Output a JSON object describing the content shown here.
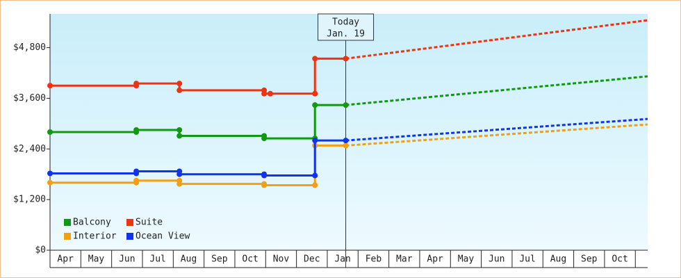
{
  "chart_data": {
    "type": "line",
    "xlim": [
      0,
      19.4
    ],
    "ylim": [
      0,
      5600
    ],
    "yticks": [
      {
        "value": 0,
        "label": "$0"
      },
      {
        "value": 1200,
        "label": "$1,200"
      },
      {
        "value": 2400,
        "label": "$2,400"
      },
      {
        "value": 3600,
        "label": "$3,600"
      },
      {
        "value": 4800,
        "label": "$4,800"
      }
    ],
    "xticks": [
      {
        "value": 0.5,
        "label": "Apr"
      },
      {
        "value": 1.5,
        "label": "May"
      },
      {
        "value": 2.5,
        "label": "Jun"
      },
      {
        "value": 3.5,
        "label": "Jul"
      },
      {
        "value": 4.5,
        "label": "Aug"
      },
      {
        "value": 5.5,
        "label": "Sep"
      },
      {
        "value": 6.5,
        "label": "Oct"
      },
      {
        "value": 7.5,
        "label": "Nov"
      },
      {
        "value": 8.5,
        "label": "Dec"
      },
      {
        "value": 9.5,
        "label": "Jan"
      },
      {
        "value": 10.5,
        "label": "Feb"
      },
      {
        "value": 11.5,
        "label": "Mar"
      },
      {
        "value": 12.5,
        "label": "Apr"
      },
      {
        "value": 13.5,
        "label": "May"
      },
      {
        "value": 14.5,
        "label": "Jun"
      },
      {
        "value": 15.5,
        "label": "Jul"
      },
      {
        "value": 16.5,
        "label": "Aug"
      },
      {
        "value": 17.5,
        "label": "Sep"
      },
      {
        "value": 18.5,
        "label": "Oct"
      }
    ],
    "legend": "lower left",
    "today_marker": {
      "x": 9.6,
      "title": "Today",
      "date": "Jan. 19"
    },
    "series": [
      {
        "name": "Balcony",
        "color": "#119911",
        "x": [
          0,
          2.8,
          2.8,
          4.2,
          4.2,
          6.95,
          6.95,
          8.6,
          8.6,
          9.6
        ],
        "values": [
          2800,
          2800,
          2850,
          2850,
          2710,
          2710,
          2650,
          2650,
          3440,
          3440
        ],
        "forecast": {
          "x": [
            9.6,
            19.4
          ],
          "values": [
            3440,
            4120
          ]
        }
      },
      {
        "name": "Suite",
        "color": "#ee3311",
        "x": [
          0,
          2.8,
          2.8,
          4.2,
          4.2,
          6.95,
          6.95,
          7.15,
          8.6,
          8.6,
          9.6
        ],
        "values": [
          3900,
          3900,
          3950,
          3950,
          3790,
          3790,
          3710,
          3710,
          3710,
          4540,
          4540
        ],
        "forecast": {
          "x": [
            9.6,
            19.4
          ],
          "values": [
            4540,
            5450
          ]
        }
      },
      {
        "name": "Interior",
        "color": "#f0a010",
        "x": [
          0,
          2.8,
          2.8,
          4.2,
          4.2,
          6.95,
          6.95,
          8.6,
          8.6,
          9.6
        ],
        "values": [
          1600,
          1600,
          1650,
          1650,
          1570,
          1570,
          1540,
          1540,
          2480,
          2480
        ],
        "forecast": {
          "x": [
            9.6,
            19.4
          ],
          "values": [
            2480,
            2980
          ]
        }
      },
      {
        "name": "Ocean View",
        "color": "#1133ee",
        "x": [
          0,
          2.8,
          2.8,
          4.2,
          4.2,
          6.95,
          6.95,
          8.6,
          8.6,
          9.6
        ],
        "values": [
          1820,
          1820,
          1870,
          1870,
          1800,
          1800,
          1770,
          1770,
          2600,
          2600
        ],
        "forecast": {
          "x": [
            9.6,
            19.4
          ],
          "values": [
            2600,
            3110
          ]
        }
      }
    ]
  }
}
